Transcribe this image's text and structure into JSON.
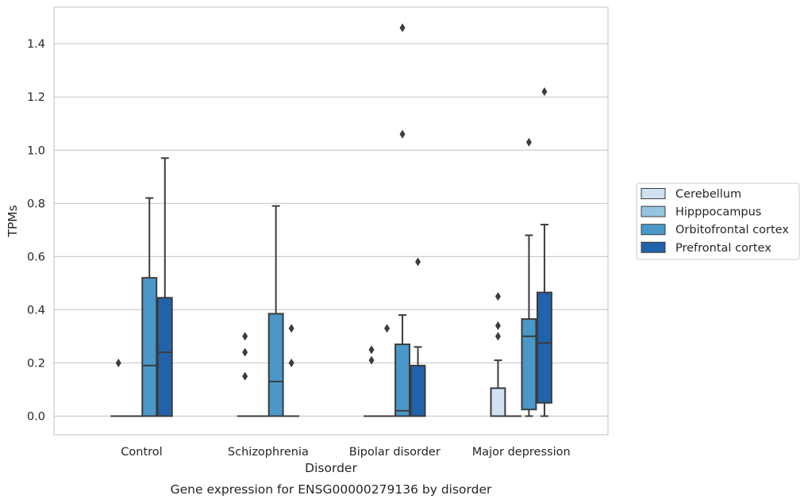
{
  "chart_data": {
    "type": "box",
    "title": "",
    "caption": "Gene expression for ENSG00000279136 by disorder",
    "xlabel": "Disorder",
    "ylabel": "TPMs",
    "ylim": [
      -0.07,
      1.54
    ],
    "yticks": [
      0.0,
      0.2,
      0.4,
      0.6,
      0.8,
      1.0,
      1.2,
      1.4
    ],
    "ytick_labels": [
      "0.0",
      "0.2",
      "0.4",
      "0.6",
      "0.8",
      "1.0",
      "1.2",
      "1.4"
    ],
    "grid": "horizontal",
    "legend_position": "right",
    "categories": [
      "Control",
      "Schizophrenia",
      "Bipolar disorder",
      "Major depression"
    ],
    "series": [
      {
        "name": "Cerebellum",
        "color": "#d0e1f2",
        "boxes": [
          {
            "q1": 0,
            "median": 0,
            "q3": 0,
            "whisker_low": 0,
            "whisker_high": 0,
            "outliers": [
              0.2
            ]
          },
          {
            "q1": 0,
            "median": 0,
            "q3": 0,
            "whisker_low": 0,
            "whisker_high": 0,
            "outliers": [
              0.15,
              0.24,
              0.3
            ]
          },
          {
            "q1": 0,
            "median": 0,
            "q3": 0,
            "whisker_low": 0,
            "whisker_high": 0,
            "outliers": [
              0.21,
              0.25
            ]
          },
          {
            "q1": 0,
            "median": 0,
            "q3": 0.105,
            "whisker_low": 0,
            "whisker_high": 0.21,
            "outliers": [
              0.3,
              0.34,
              0.45
            ]
          }
        ]
      },
      {
        "name": "Hipppocampus",
        "color": "#94c4df",
        "boxes": [
          {
            "q1": 0,
            "median": 0,
            "q3": 0,
            "whisker_low": 0,
            "whisker_high": 0,
            "outliers": []
          },
          {
            "q1": 0,
            "median": 0,
            "q3": 0,
            "whisker_low": 0,
            "whisker_high": 0,
            "outliers": []
          },
          {
            "q1": 0,
            "median": 0,
            "q3": 0,
            "whisker_low": 0,
            "whisker_high": 0,
            "outliers": [
              0.33
            ]
          },
          {
            "q1": 0,
            "median": 0,
            "q3": 0,
            "whisker_low": 0,
            "whisker_high": 0,
            "outliers": []
          }
        ]
      },
      {
        "name": "Orbitofrontal cortex",
        "color": "#4a98c9",
        "boxes": [
          {
            "q1": 0,
            "median": 0.19,
            "q3": 0.52,
            "whisker_low": 0,
            "whisker_high": 0.82,
            "outliers": []
          },
          {
            "q1": 0,
            "median": 0.13,
            "q3": 0.385,
            "whisker_low": 0,
            "whisker_high": 0.79,
            "outliers": []
          },
          {
            "q1": 0,
            "median": 0.02,
            "q3": 0.27,
            "whisker_low": 0,
            "whisker_high": 0.38,
            "outliers": [
              1.06,
              1.46
            ]
          },
          {
            "q1": 0.025,
            "median": 0.3,
            "q3": 0.365,
            "whisker_low": 0,
            "whisker_high": 0.68,
            "outliers": [
              1.03
            ]
          }
        ]
      },
      {
        "name": "Prefrontal cortex",
        "color": "#2163aa",
        "boxes": [
          {
            "q1": 0,
            "median": 0.24,
            "q3": 0.445,
            "whisker_low": 0,
            "whisker_high": 0.97,
            "outliers": []
          },
          {
            "q1": 0,
            "median": 0,
            "q3": 0,
            "whisker_low": 0,
            "whisker_high": 0,
            "outliers": [
              0.2,
              0.33
            ]
          },
          {
            "q1": 0,
            "median": 0,
            "q3": 0.19,
            "whisker_low": 0,
            "whisker_high": 0.26,
            "outliers": [
              0.58
            ]
          },
          {
            "q1": 0.05,
            "median": 0.275,
            "q3": 0.465,
            "whisker_low": 0,
            "whisker_high": 0.72,
            "outliers": [
              1.22
            ]
          }
        ]
      }
    ]
  }
}
